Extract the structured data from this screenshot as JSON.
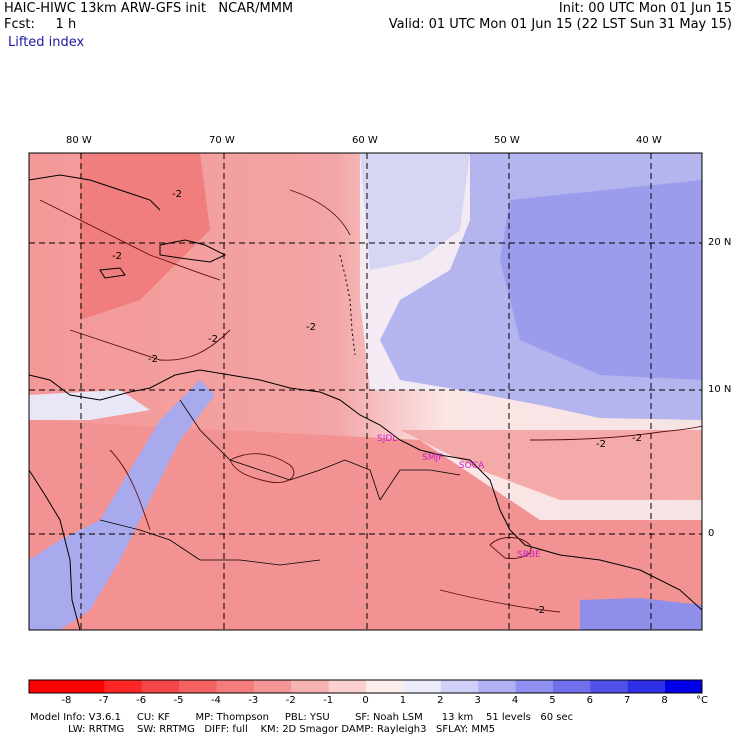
{
  "header": {
    "model_line": "HAIC-HIWC 13km ARW-GFS init   NCAR/MMM",
    "fcst_line": "Fcst:     1 h",
    "field": "Lifted index",
    "init_line": "Init: 00 UTC Mon 01 Jun 15",
    "valid_line": "Valid: 01 UTC Mon 01 Jun 15 (22 LST Sun 31 May 15)"
  },
  "map": {
    "lon_labels": [
      "80 W",
      "70 W",
      "60 W",
      "50 W",
      "40 W"
    ],
    "lat_labels": [
      "20 N",
      "10 N",
      "0"
    ],
    "contour_labels": [
      "-2",
      "-2",
      "-2",
      "-2",
      "-2",
      "-2",
      "-2",
      "-2"
    ],
    "stations": [
      "SJDL",
      "SMJP",
      "SOCA",
      "SBBE"
    ],
    "colors": {
      "station": "#cc22cc",
      "contour": "#551111",
      "coast": "#000000"
    }
  },
  "colorbar": {
    "labels": [
      "-8",
      "-7",
      "-6",
      "-5",
      "-4",
      "-3",
      "-2",
      "-1",
      "0",
      "1",
      "2",
      "3",
      "4",
      "5",
      "6",
      "7",
      "8"
    ],
    "unit": "°C",
    "colors": [
      "#ff0000",
      "#ff2626",
      "#f44646",
      "#f46262",
      "#f47c7c",
      "#f49696",
      "#f7b2b2",
      "#fad0d0",
      "#fdeeee",
      "#ececfb",
      "#d0d0f8",
      "#b0b0f4",
      "#9090f0",
      "#7070ec",
      "#5050ea",
      "#2f2fe8",
      "#0000e8"
    ]
  },
  "footer": {
    "line1": "Model Info: V3.6.1     CU: KF        MP: Thompson     PBL: YSU        SF: Noah LSM      13 km    51 levels   60 sec",
    "line2": "            LW: RRTMG    SW: RRTMG   DIFF: full    KM: 2D Smagor DAMP: Rayleigh3   SFLAY: MM5"
  }
}
